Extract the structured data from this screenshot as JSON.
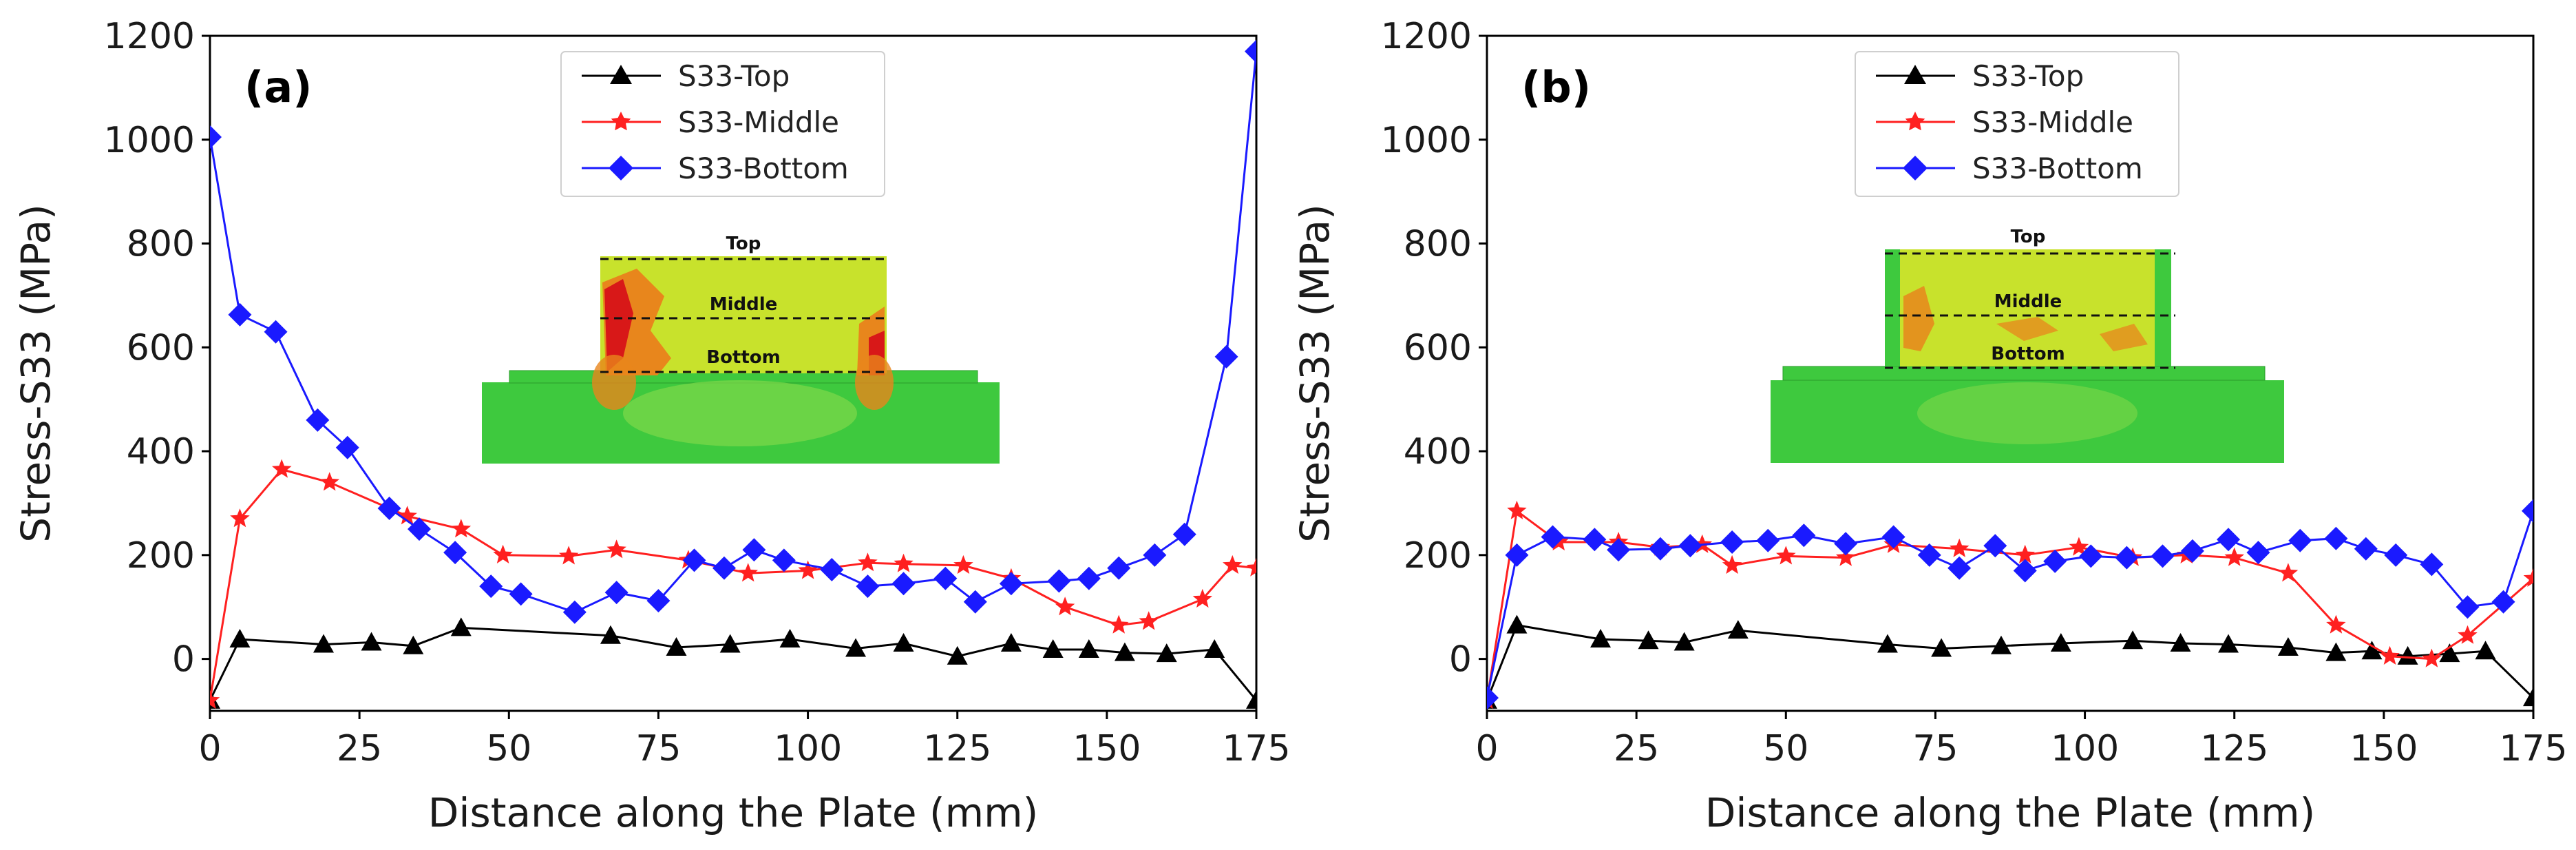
{
  "colors": {
    "top": "#000000",
    "middle": "#ff2020",
    "bottom": "#1a1aff",
    "fe_green": "#3ec93e",
    "fe_yellow": "#c8e22c",
    "fe_orange": "#e8861c",
    "fe_red": "#d81818"
  },
  "inset_labels": {
    "top": "Top",
    "middle": "Middle",
    "bottom": "Bottom"
  },
  "chart_data": [
    {
      "type": "line",
      "panel_label": "(a)",
      "xlabel": "Distance along the Plate (mm)",
      "ylabel": "Stress-S33 (MPa)",
      "xlim": [
        0,
        175
      ],
      "ylim": [
        -100,
        1200
      ],
      "xticks": [
        0,
        25,
        50,
        75,
        100,
        125,
        150,
        175
      ],
      "yticks": [
        0,
        200,
        400,
        600,
        800,
        1000,
        1200
      ],
      "legend": [
        "S33-Top",
        "S33-Middle",
        "S33-Bottom"
      ],
      "series": [
        {
          "name": "S33-Top",
          "marker": "triangle",
          "x": [
            0,
            5,
            19,
            27,
            34,
            42,
            67,
            78,
            87,
            97,
            108,
            116,
            125,
            134,
            141,
            147,
            153,
            160,
            168,
            175
          ],
          "y": [
            -80,
            38,
            28,
            32,
            25,
            60,
            45,
            22,
            28,
            38,
            20,
            30,
            5,
            30,
            18,
            18,
            12,
            10,
            18,
            -80
          ]
        },
        {
          "name": "S33-Middle",
          "marker": "star",
          "x": [
            0,
            5,
            12,
            20,
            33,
            42,
            49,
            60,
            68,
            80,
            90,
            100,
            110,
            116,
            126,
            134,
            143,
            152,
            157,
            166,
            171,
            175
          ],
          "y": [
            -80,
            270,
            365,
            340,
            275,
            250,
            200,
            198,
            210,
            190,
            165,
            170,
            185,
            183,
            180,
            155,
            100,
            65,
            72,
            115,
            180,
            175
          ]
        },
        {
          "name": "S33-Bottom",
          "marker": "diamond",
          "x": [
            0,
            5,
            11,
            18,
            23,
            30,
            35,
            41,
            47,
            52,
            61,
            68,
            75,
            81,
            86,
            91,
            96,
            104,
            110,
            116,
            123,
            128,
            134,
            142,
            147,
            152,
            158,
            163,
            170,
            175
          ],
          "y": [
            1005,
            663,
            630,
            460,
            407,
            290,
            250,
            205,
            140,
            125,
            90,
            128,
            112,
            190,
            175,
            210,
            190,
            172,
            140,
            145,
            155,
            110,
            145,
            150,
            155,
            175,
            200,
            240,
            582,
            1170
          ]
        }
      ]
    },
    {
      "type": "line",
      "panel_label": "(b)",
      "xlabel": "Distance along the Plate (mm)",
      "ylabel": "Stress-S33 (MPa)",
      "xlim": [
        0,
        175
      ],
      "ylim": [
        -100,
        1200
      ],
      "xticks": [
        0,
        25,
        50,
        75,
        100,
        125,
        150,
        175
      ],
      "yticks": [
        0,
        200,
        400,
        600,
        800,
        1000,
        1200
      ],
      "legend": [
        "S33-Top",
        "S33-Middle",
        "S33-Bottom"
      ],
      "series": [
        {
          "name": "S33-Top",
          "marker": "triangle",
          "x": [
            0,
            5,
            19,
            27,
            33,
            42,
            67,
            76,
            86,
            96,
            108,
            116,
            124,
            134,
            142,
            148,
            154,
            161,
            167,
            175
          ],
          "y": [
            -80,
            65,
            38,
            35,
            32,
            55,
            28,
            20,
            25,
            30,
            35,
            30,
            28,
            22,
            12,
            15,
            5,
            10,
            15,
            -75
          ]
        },
        {
          "name": "S33-Middle",
          "marker": "star",
          "x": [
            0,
            5,
            12,
            22,
            29,
            36,
            41,
            50,
            60,
            68,
            79,
            90,
            99,
            108,
            117,
            125,
            134,
            142,
            151,
            158,
            164,
            175
          ],
          "y": [
            -80,
            285,
            225,
            225,
            215,
            220,
            180,
            198,
            195,
            220,
            212,
            200,
            215,
            195,
            200,
            195,
            165,
            65,
            5,
            0,
            45,
            155
          ]
        },
        {
          "name": "S33-Bottom",
          "marker": "diamond",
          "x": [
            0,
            5,
            11,
            18,
            22,
            29,
            34,
            41,
            47,
            53,
            60,
            68,
            74,
            79,
            85,
            90,
            95,
            101,
            107,
            113,
            118,
            124,
            129,
            136,
            142,
            147,
            152,
            158,
            164,
            170,
            175
          ],
          "y": [
            -75,
            200,
            235,
            230,
            210,
            212,
            218,
            225,
            228,
            238,
            222,
            235,
            200,
            175,
            218,
            170,
            188,
            198,
            195,
            198,
            208,
            230,
            205,
            228,
            232,
            212,
            200,
            182,
            100,
            110,
            285
          ]
        }
      ]
    }
  ]
}
